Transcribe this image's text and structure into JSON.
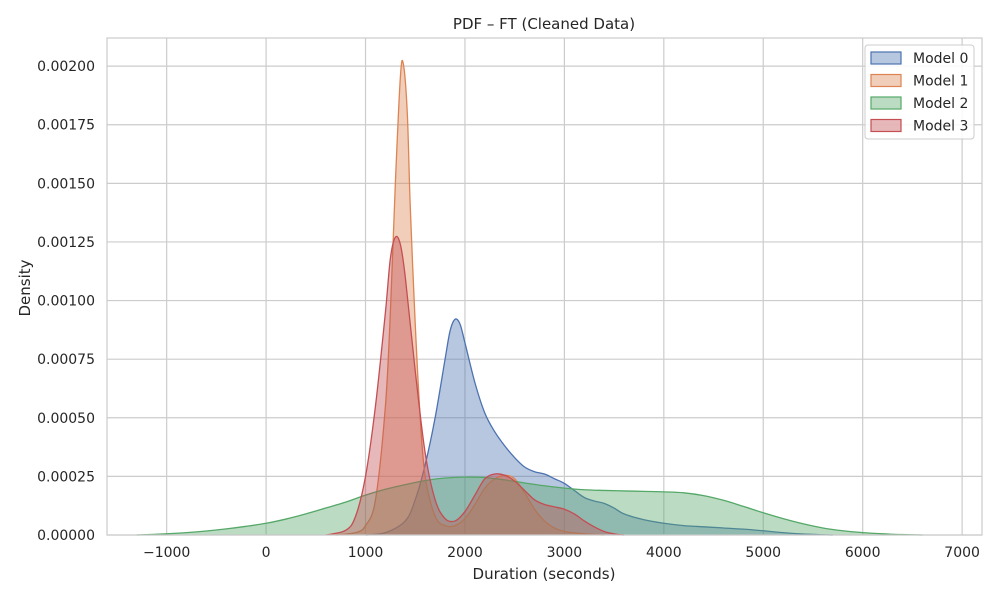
{
  "chart_data": {
    "type": "area",
    "title": "PDF – FT (Cleaned Data)",
    "xlabel": "Duration (seconds)",
    "ylabel": "Density",
    "xlim": [
      -1600,
      7200
    ],
    "ylim": [
      0,
      0.00212
    ],
    "x_ticks": [
      -1000,
      0,
      1000,
      2000,
      3000,
      4000,
      5000,
      6000,
      7000
    ],
    "x_tick_labels": [
      "−1000",
      "0",
      "1000",
      "2000",
      "3000",
      "4000",
      "5000",
      "6000",
      "7000"
    ],
    "y_ticks": [
      0,
      0.00025,
      0.0005,
      0.00075,
      0.001,
      0.00125,
      0.0015,
      0.00175,
      0.002
    ],
    "y_tick_labels": [
      "0.00000",
      "0.00025",
      "0.00050",
      "0.00075",
      "0.00100",
      "0.00125",
      "0.00150",
      "0.00175",
      "0.00200"
    ],
    "grid": true,
    "legend_position": "top-right",
    "series": [
      {
        "name": "Model 0",
        "color": "#4c72b0",
        "x": [
          1000,
          1200,
          1400,
          1500,
          1600,
          1700,
          1800,
          1850,
          1900,
          1950,
          2000,
          2100,
          2200,
          2300,
          2400,
          2500,
          2600,
          2700,
          2800,
          2900,
          3000,
          3100,
          3200,
          3300,
          3400,
          3500,
          3600,
          3800,
          4000,
          4200,
          4400,
          4600,
          4800,
          5000,
          5200,
          5400,
          5600,
          5700
        ],
        "y": [
          0,
          1e-05,
          6e-05,
          0.00015,
          0.0003,
          0.0005,
          0.00075,
          0.00087,
          0.00092,
          0.0009,
          0.00082,
          0.00065,
          0.00052,
          0.00044,
          0.00038,
          0.00033,
          0.00029,
          0.00027,
          0.00026,
          0.00024,
          0.00022,
          0.00019,
          0.00016,
          0.000145,
          0.000135,
          0.000115,
          9e-05,
          6.5e-05,
          5e-05,
          4e-05,
          3.5e-05,
          3e-05,
          2.5e-05,
          1.8e-05,
          1e-05,
          4e-06,
          1e-06,
          0
        ]
      },
      {
        "name": "Model 1",
        "color": "#dd8452",
        "x": [
          700,
          900,
          1000,
          1100,
          1200,
          1250,
          1300,
          1350,
          1380,
          1420,
          1450,
          1500,
          1550,
          1600,
          1700,
          1800,
          1900,
          2000,
          2100,
          2200,
          2300,
          2400,
          2500,
          2600,
          2700,
          2800,
          2900,
          3000,
          3200,
          3400
        ],
        "y": [
          0,
          1e-05,
          4e-05,
          0.00015,
          0.00055,
          0.00095,
          0.0015,
          0.00195,
          0.00201,
          0.0018,
          0.0014,
          0.0009,
          0.0005,
          0.00025,
          8e-05,
          4e-05,
          4e-05,
          7e-05,
          0.00013,
          0.0002,
          0.00024,
          0.000255,
          0.00024,
          0.00018,
          0.00011,
          6e-05,
          3e-05,
          1.5e-05,
          5e-06,
          0
        ]
      },
      {
        "name": "Model 2",
        "color": "#55a868",
        "x": [
          -1300,
          -1000,
          -800,
          -600,
          -400,
          -200,
          0,
          200,
          400,
          600,
          800,
          1000,
          1200,
          1400,
          1600,
          1800,
          2000,
          2200,
          2400,
          2600,
          2800,
          3000,
          3200,
          3400,
          3600,
          3800,
          4000,
          4200,
          4400,
          4600,
          4800,
          5000,
          5200,
          5400,
          5600,
          5800,
          6000,
          6200,
          6400,
          6600
        ],
        "y": [
          0,
          5e-06,
          1e-05,
          1.7e-05,
          2.6e-05,
          3.7e-05,
          5e-05,
          6.8e-05,
          9e-05,
          0.000115,
          0.00014,
          0.00017,
          0.000195,
          0.000215,
          0.000232,
          0.000243,
          0.000247,
          0.000245,
          0.000235,
          0.000222,
          0.00021,
          0.0002,
          0.000193,
          0.00019,
          0.000188,
          0.000186,
          0.000184,
          0.00018,
          0.000168,
          0.000148,
          0.000122,
          9.5e-05,
          7e-05,
          4.8e-05,
          3e-05,
          1.8e-05,
          1e-05,
          5e-06,
          2e-06,
          0
        ]
      },
      {
        "name": "Model 3",
        "color": "#c44e52",
        "x": [
          600,
          800,
          900,
          1000,
          1100,
          1200,
          1250,
          1300,
          1350,
          1400,
          1500,
          1600,
          1700,
          1800,
          1900,
          2000,
          2100,
          2200,
          2300,
          2400,
          2500,
          2600,
          2700,
          2800,
          2900,
          3000,
          3100,
          3200,
          3300,
          3400,
          3500,
          3600
        ],
        "y": [
          0,
          2e-05,
          8e-05,
          0.00025,
          0.00055,
          0.00095,
          0.00118,
          0.00127,
          0.00124,
          0.0011,
          0.0007,
          0.00035,
          0.00015,
          7e-05,
          6e-05,
          0.0001,
          0.00017,
          0.00024,
          0.00026,
          0.000255,
          0.00023,
          0.00019,
          0.00015,
          0.00013,
          0.00012,
          0.00011,
          9e-05,
          6e-05,
          3.5e-05,
          1.5e-05,
          5e-06,
          0
        ]
      }
    ]
  }
}
